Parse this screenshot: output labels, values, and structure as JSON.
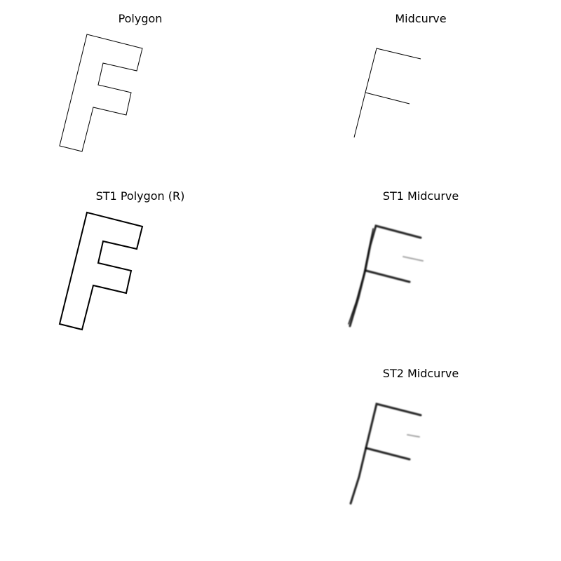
{
  "panels": {
    "polygon": {
      "title": "Polygon"
    },
    "midcurve": {
      "title": "Midcurve"
    },
    "st1_polygon": {
      "title": "ST1 Polygon (R)"
    },
    "st1_midcurve": {
      "title": "ST1 Midcurve"
    },
    "st2_midcurve": {
      "title": "ST2 Midcurve"
    }
  },
  "colors": {
    "stroke": "#000000",
    "background": "#ffffff"
  }
}
